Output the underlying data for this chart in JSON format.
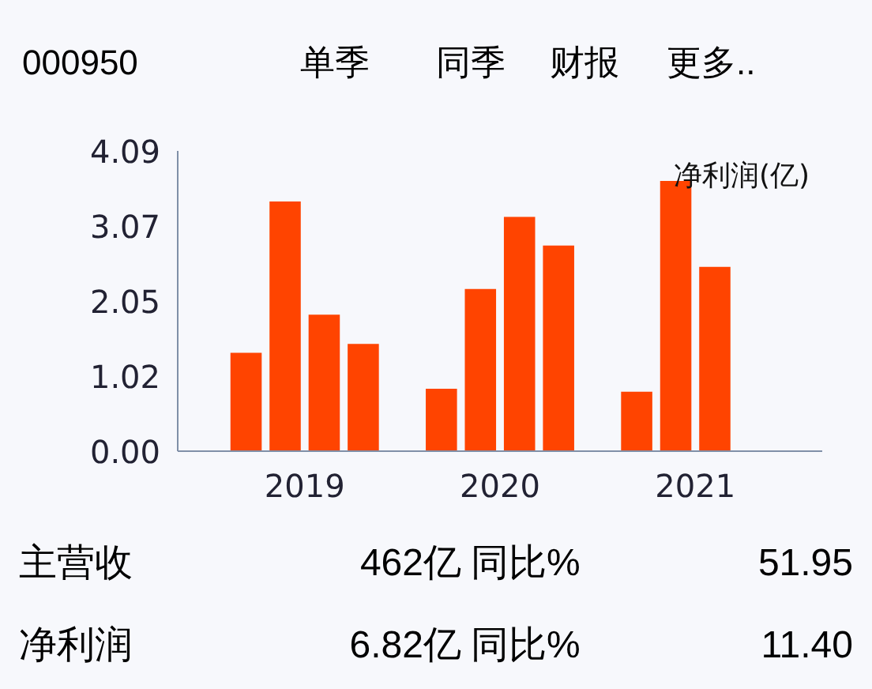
{
  "chart_data": {
    "type": "bar",
    "title": "000950",
    "ylabel": "净利润(亿)",
    "categories": [
      "2019",
      "2020",
      "2021"
    ],
    "series": [
      {
        "color": "#ff4400",
        "values": [
          1.34,
          0.85,
          0.81
        ]
      },
      {
        "color": "#ff4400",
        "values": [
          3.4,
          2.21,
          3.68
        ]
      },
      {
        "color": "#ff4400",
        "values": [
          1.86,
          3.19,
          2.51
        ]
      },
      {
        "color": "#ff4400",
        "values": [
          1.46,
          2.8,
          null
        ]
      }
    ],
    "ylim": [
      0,
      4.09
    ],
    "yticks": [
      {
        "value": 0,
        "label": "0.00"
      },
      1.02,
      2.05,
      3.07,
      4.09
    ],
    "grid": false,
    "annotations": [
      "单季",
      "同季",
      "财报",
      "更多..",
      "主营收",
      "462亿",
      "同比%",
      "51.95",
      "净利润",
      "6.82亿",
      "同比%",
      "11.40"
    ]
  }
}
